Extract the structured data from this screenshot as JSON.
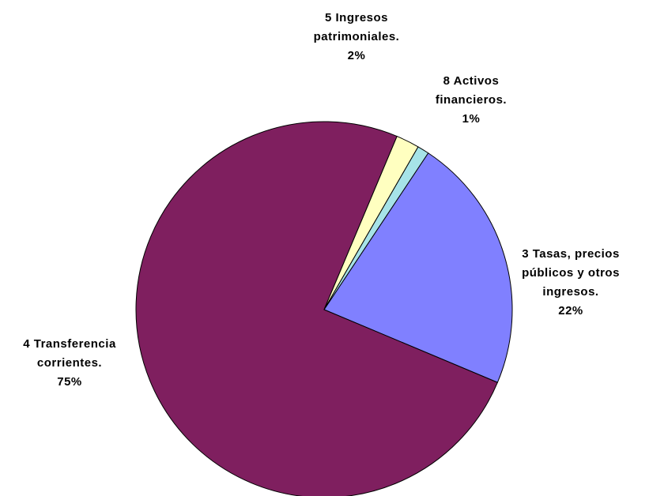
{
  "chart_data": {
    "type": "pie",
    "title": "",
    "slices": [
      {
        "line1": "3 Tasas, precios",
        "line2": "públicos y otros",
        "line3": "ingresos.",
        "pct_label": "22%",
        "value": 22,
        "color": "#8080FF"
      },
      {
        "line1": "4 Transferencia",
        "line2": "corrientes.",
        "line3": "",
        "pct_label": "75%",
        "value": 75,
        "color": "#7F1F5F"
      },
      {
        "line1": "5 Ingresos",
        "line2": "patrimoniales.",
        "line3": "",
        "pct_label": "2%",
        "value": 2,
        "color": "#FFFFC0"
      },
      {
        "line1": "8 Activos",
        "line2": "financieros.",
        "line3": "",
        "pct_label": "1%",
        "value": 1,
        "color": "#A6E3E8"
      }
    ]
  }
}
